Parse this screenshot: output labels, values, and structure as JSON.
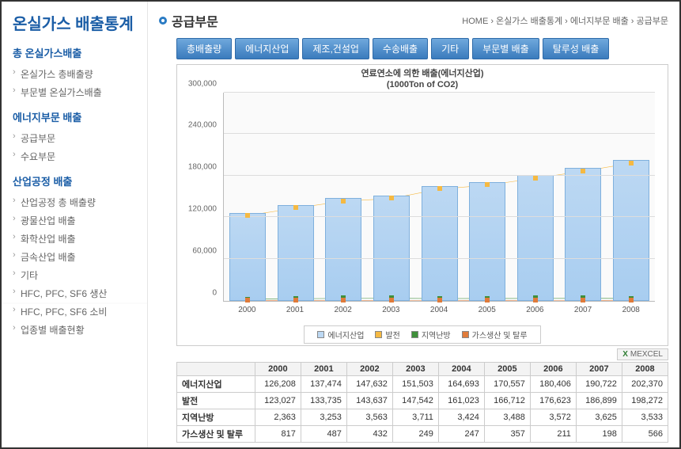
{
  "sidebar": {
    "title": "온실가스 배출통계",
    "sections": [
      {
        "heading": "총 온실가스배출",
        "items": [
          "온실가스 총배출량",
          "부문별 온실가스배출"
        ]
      },
      {
        "heading": "에너지부문 배출",
        "items": [
          "공급부문",
          "수요부문"
        ]
      },
      {
        "heading": "산업공정 배출",
        "items": [
          "산업공정 총 배출량",
          "광물산업 배출",
          "화학산업 배출",
          "금속산업 배출",
          "기타",
          "HFC, PFC, SF6 생산",
          "HFC, PFC, SF6 소비",
          "업종별 배출현황"
        ]
      }
    ]
  },
  "header": {
    "page_title": "공급부문",
    "breadcrumb": "HOME › 온실가스 배출통계 › 에너지부문 배출 › 공급부문"
  },
  "tabs": [
    "총배출량",
    "에너지산업",
    "제조,건설업",
    "수송배출",
    "기타",
    "부문별 배출",
    "탈루성 배출"
  ],
  "chart": {
    "title_line1": "연료연소에 의한 배출(에너지산업)",
    "title_line2": "(1000Ton of CO2)",
    "type": "bar+line",
    "ylim": [
      0,
      300000
    ],
    "yticks": [
      0,
      60000,
      120000,
      180000,
      240000,
      300000
    ],
    "categories": [
      "2000",
      "2001",
      "2002",
      "2003",
      "2004",
      "2005",
      "2006",
      "2007",
      "2008"
    ],
    "series": [
      {
        "name": "에너지산업",
        "kind": "bar",
        "color": "#bcd8f3",
        "border": "#7fb0dd",
        "values": [
          126208,
          137474,
          147632,
          151503,
          164693,
          170557,
          180406,
          190722,
          202370
        ]
      },
      {
        "name": "발전",
        "kind": "line",
        "color": "#f5b942",
        "marker": "square",
        "values": [
          123027,
          133735,
          143637,
          147542,
          161023,
          166712,
          176623,
          186899,
          198272
        ]
      },
      {
        "name": "지역난방",
        "kind": "line",
        "color": "#3f8f3a",
        "marker": "square",
        "values": [
          2363,
          3253,
          3563,
          3711,
          3424,
          3488,
          3572,
          3625,
          3533
        ]
      },
      {
        "name": "가스생산 및 탈루",
        "kind": "line",
        "color": "#e07b3a",
        "marker": "square",
        "values": [
          817,
          487,
          432,
          249,
          247,
          357,
          211,
          198,
          566
        ]
      }
    ],
    "legend_labels": [
      "에너지산업",
      "발전",
      "지역난방",
      "가스생산 및 탈루"
    ],
    "background": "#fafafa",
    "grid_color": "#dddddd",
    "axis_font_size": 10
  },
  "excel_label": "MEXCEL",
  "table": {
    "columns": [
      "",
      "2000",
      "2001",
      "2002",
      "2003",
      "2004",
      "2005",
      "2006",
      "2007",
      "2008"
    ],
    "rows": [
      [
        "에너지산업",
        "126,208",
        "137,474",
        "147,632",
        "151,503",
        "164,693",
        "170,557",
        "180,406",
        "190,722",
        "202,370"
      ],
      [
        "발전",
        "123,027",
        "133,735",
        "143,637",
        "147,542",
        "161,023",
        "166,712",
        "176,623",
        "186,899",
        "198,272"
      ],
      [
        "지역난방",
        "2,363",
        "3,253",
        "3,563",
        "3,711",
        "3,424",
        "3,488",
        "3,572",
        "3,625",
        "3,533"
      ],
      [
        "가스생산 및 탈루",
        "817",
        "487",
        "432",
        "249",
        "247",
        "357",
        "211",
        "198",
        "566"
      ]
    ]
  }
}
